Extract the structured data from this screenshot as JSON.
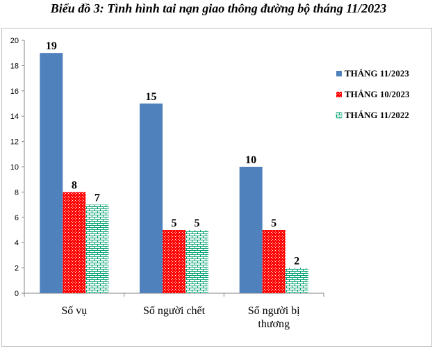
{
  "chart_data": {
    "type": "bar",
    "title": "Biểu đồ 3: Tình hình tai nạn giao thông đường bộ tháng 11/2023",
    "categories": [
      "Số vụ",
      "Số người chết",
      "Số người bị thương"
    ],
    "series": [
      {
        "name": "THÁNG 11/2023",
        "values": [
          19,
          15,
          10
        ],
        "color": "#4f81bd",
        "pattern": "solid"
      },
      {
        "name": "THÁNG 10/2023",
        "values": [
          8,
          5,
          5
        ],
        "color": "#ff0000",
        "pattern": "dots"
      },
      {
        "name": "THÁNG 11/2022",
        "values": [
          7,
          5,
          2
        ],
        "color": "#00a070",
        "pattern": "bricks"
      }
    ],
    "ylim": [
      0,
      20
    ],
    "yticks": [
      0,
      2,
      4,
      6,
      8,
      10,
      12,
      14,
      16,
      18,
      20
    ],
    "grid": false,
    "legend_position": "right"
  }
}
